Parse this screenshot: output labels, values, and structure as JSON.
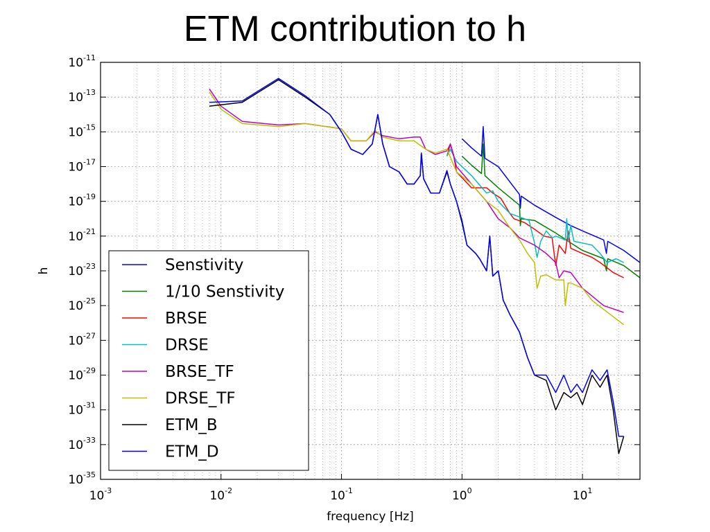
{
  "slide": {
    "title": "ETM contribution to h"
  },
  "chart_data": {
    "type": "line",
    "title": "",
    "xlabel": "frequency [Hz]",
    "ylabel": "h",
    "x_scale": "log",
    "y_scale": "log",
    "xlim": [
      0.001,
      30
    ],
    "ylim": [
      1e-35,
      1e-11
    ],
    "grid": true,
    "legend_position": "lower-left",
    "x_ticks": [
      {
        "value": 0.001,
        "base": "10",
        "exp": "-3"
      },
      {
        "value": 0.01,
        "base": "10",
        "exp": "-2"
      },
      {
        "value": 0.1,
        "base": "10",
        "exp": "-1"
      },
      {
        "value": 1,
        "base": "10",
        "exp": "0"
      },
      {
        "value": 10,
        "base": "10",
        "exp": "1"
      }
    ],
    "y_ticks": [
      {
        "value": 1e-11,
        "base": "10",
        "exp": "-11"
      },
      {
        "value": 1e-13,
        "base": "10",
        "exp": "-13"
      },
      {
        "value": 1e-15,
        "base": "10",
        "exp": "-15"
      },
      {
        "value": 1e-17,
        "base": "10",
        "exp": "-17"
      },
      {
        "value": 1e-19,
        "base": "10",
        "exp": "-19"
      },
      {
        "value": 1e-21,
        "base": "10",
        "exp": "-21"
      },
      {
        "value": 1e-23,
        "base": "10",
        "exp": "-23"
      },
      {
        "value": 1e-25,
        "base": "10",
        "exp": "-25"
      },
      {
        "value": 1e-27,
        "base": "10",
        "exp": "-27"
      },
      {
        "value": 1e-29,
        "base": "10",
        "exp": "-29"
      },
      {
        "value": 1e-31,
        "base": "10",
        "exp": "-31"
      },
      {
        "value": 1e-33,
        "base": "10",
        "exp": "-33"
      },
      {
        "value": 1e-35,
        "base": "10",
        "exp": "-35"
      }
    ],
    "series": [
      {
        "name": "Senstivity",
        "color": "#0000ff",
        "points": [
          [
            1.0,
            4e-16
          ],
          [
            1.2,
            1.2e-16
          ],
          [
            1.45,
            4e-17
          ],
          [
            1.5,
            2e-15
          ],
          [
            1.55,
            3e-17
          ],
          [
            2,
            1e-17
          ],
          [
            3,
            2.5e-19
          ],
          [
            3.05,
            4e-20
          ],
          [
            3.1,
            2e-19
          ],
          [
            4,
            6e-20
          ],
          [
            6,
            1.2e-20
          ],
          [
            8,
            4e-21
          ],
          [
            10,
            2e-21
          ],
          [
            15,
            6e-22
          ],
          [
            15.8,
            1e-22
          ],
          [
            16.2,
            5e-22
          ],
          [
            22,
            1.5e-22
          ],
          [
            30,
            3e-23
          ]
        ]
      },
      {
        "name": "1/10 Senstivity",
        "color": "#008000",
        "points": [
          [
            1.0,
            4e-17
          ],
          [
            1.2,
            1.2e-17
          ],
          [
            1.45,
            4e-18
          ],
          [
            1.5,
            2e-16
          ],
          [
            1.55,
            3e-18
          ],
          [
            2,
            6e-19
          ],
          [
            3,
            6e-20
          ],
          [
            3.05,
            4e-21
          ],
          [
            3.1,
            1e-20
          ],
          [
            4,
            8e-21
          ],
          [
            6,
            1.5e-21
          ],
          [
            8,
            4e-22
          ],
          [
            10,
            1.5e-22
          ],
          [
            15,
            5e-23
          ],
          [
            15.8,
            1e-23
          ],
          [
            16.2,
            5e-23
          ],
          [
            22,
            2e-23
          ],
          [
            30,
            4e-24
          ]
        ]
      },
      {
        "name": "BRSE",
        "color": "#ff0000",
        "points": [
          [
            0.75,
            4e-17
          ],
          [
            0.8,
            2e-16
          ],
          [
            0.85,
            5e-17
          ],
          [
            0.9,
            5e-18
          ],
          [
            1.2,
            6e-19
          ],
          [
            1.6,
            6e-19
          ],
          [
            1.8,
            3e-19
          ],
          [
            2.1,
            1.5e-19
          ],
          [
            2.5,
            2e-20
          ],
          [
            2.7,
            1e-20
          ],
          [
            3.3,
            6e-21
          ],
          [
            4,
            2.5e-21
          ],
          [
            4.8,
            1e-21
          ],
          [
            5.6,
            8e-22
          ],
          [
            6,
            2e-23
          ],
          [
            6.4,
            3e-22
          ],
          [
            7.2,
            1e-22
          ],
          [
            7.6,
            2e-21
          ],
          [
            8,
            2e-22
          ],
          [
            10,
            1e-22
          ],
          [
            12,
            6e-23
          ],
          [
            14,
            3e-23
          ],
          [
            18,
            8e-24
          ],
          [
            22,
            4e-24
          ]
        ]
      },
      {
        "name": "DRSE",
        "color": "#00bfbf",
        "points": [
          [
            0.75,
            4e-17
          ],
          [
            0.8,
            1e-16
          ],
          [
            0.9,
            2e-17
          ],
          [
            1.2,
            3e-18
          ],
          [
            1.6,
            3e-19
          ],
          [
            1.8,
            4e-19
          ],
          [
            2,
            1e-19
          ],
          [
            2.5,
            2e-20
          ],
          [
            3.3,
            1e-20
          ],
          [
            3.6,
            8e-21
          ],
          [
            4,
            4e-22
          ],
          [
            4.2,
            6e-23
          ],
          [
            4.5,
            5e-22
          ],
          [
            5,
            2e-21
          ],
          [
            5.6,
            8e-22
          ],
          [
            6,
            1e-21
          ],
          [
            7.2,
            6e-22
          ],
          [
            7.4,
            1e-20
          ],
          [
            7.6,
            5e-22
          ],
          [
            8,
            4e-21
          ],
          [
            8.5,
            5e-22
          ],
          [
            10,
            4e-22
          ],
          [
            12,
            3e-22
          ],
          [
            14,
            1e-22
          ],
          [
            16,
            3e-23
          ],
          [
            19,
            5e-23
          ],
          [
            22,
            3e-23
          ]
        ]
      },
      {
        "name": "BRSE_TF",
        "color": "#bf00bf",
        "points": [
          [
            0.008,
            3e-13
          ],
          [
            0.01,
            3e-14
          ],
          [
            0.015,
            4e-15
          ],
          [
            0.03,
            2.5e-15
          ],
          [
            0.05,
            3e-15
          ],
          [
            0.1,
            1.5e-15
          ],
          [
            0.12,
            3e-16
          ],
          [
            0.16,
            3e-16
          ],
          [
            0.19,
            1e-15
          ],
          [
            0.22,
            6e-16
          ],
          [
            0.3,
            4e-16
          ],
          [
            0.4,
            5e-16
          ],
          [
            0.45,
            5e-16
          ],
          [
            0.5,
            1e-16
          ],
          [
            0.6,
            5e-17
          ],
          [
            0.75,
            8e-17
          ],
          [
            0.8,
            2e-16
          ],
          [
            0.9,
            1e-17
          ],
          [
            1.2,
            1e-18
          ],
          [
            1.6,
            1e-19
          ],
          [
            2,
            1e-20
          ],
          [
            2.5,
            3e-21
          ],
          [
            3,
            8e-22
          ],
          [
            4,
            3e-22
          ],
          [
            5,
            1e-22
          ],
          [
            6,
            3e-23
          ],
          [
            6.4,
            4e-24
          ],
          [
            7,
            1e-23
          ],
          [
            8,
            8e-24
          ],
          [
            10,
            1e-24
          ],
          [
            15,
            1e-25
          ],
          [
            22,
            4e-26
          ]
        ]
      },
      {
        "name": "DRSE_TF",
        "color": "#bfbf00",
        "points": [
          [
            0.008,
            2e-13
          ],
          [
            0.01,
            2e-14
          ],
          [
            0.015,
            3e-15
          ],
          [
            0.03,
            2e-15
          ],
          [
            0.05,
            3e-15
          ],
          [
            0.1,
            1.5e-15
          ],
          [
            0.12,
            3e-16
          ],
          [
            0.16,
            3e-16
          ],
          [
            0.19,
            1.2e-15
          ],
          [
            0.22,
            5e-16
          ],
          [
            0.3,
            3e-16
          ],
          [
            0.4,
            3e-16
          ],
          [
            0.5,
            1e-16
          ],
          [
            0.6,
            6e-17
          ],
          [
            0.75,
            1e-16
          ],
          [
            0.9,
            5e-18
          ],
          [
            1.2,
            1e-18
          ],
          [
            1.6,
            1e-19
          ],
          [
            2,
            3e-20
          ],
          [
            2.5,
            3e-21
          ],
          [
            3,
            6e-22
          ],
          [
            3.5,
            1e-22
          ],
          [
            4,
            3e-23
          ],
          [
            4.2,
            1e-24
          ],
          [
            4.5,
            5e-24
          ],
          [
            5,
            6e-24
          ],
          [
            6,
            3e-24
          ],
          [
            7,
            3e-24
          ],
          [
            7.2,
            1e-25
          ],
          [
            7.6,
            2e-24
          ],
          [
            8,
            2e-24
          ],
          [
            10,
            1e-24
          ],
          [
            12,
            2e-25
          ],
          [
            15,
            6e-26
          ],
          [
            22,
            8e-27
          ]
        ]
      },
      {
        "name": "ETM_B",
        "color": "#000000",
        "points": [
          [
            0.008,
            3e-14
          ],
          [
            0.015,
            5e-14
          ],
          [
            0.03,
            1e-12
          ],
          [
            0.05,
            1e-13
          ],
          [
            0.08,
            1e-14
          ],
          [
            0.1,
            1e-15
          ],
          [
            0.12,
            1e-16
          ],
          [
            0.15,
            5e-17
          ],
          [
            0.18,
            2e-16
          ],
          [
            0.2,
            1e-14
          ],
          [
            0.22,
            2e-16
          ],
          [
            0.25,
            1e-17
          ],
          [
            0.3,
            5e-18
          ],
          [
            0.35,
            1e-18
          ],
          [
            0.4,
            1e-18
          ],
          [
            0.45,
            3e-18
          ],
          [
            0.46,
            6e-17
          ],
          [
            0.48,
            2e-18
          ],
          [
            0.55,
            3e-19
          ],
          [
            0.65,
            3e-19
          ],
          [
            0.75,
            5e-18
          ],
          [
            0.8,
            1e-18
          ],
          [
            0.9,
            1e-19
          ],
          [
            1.0,
            6e-21
          ],
          [
            1.1,
            3e-22
          ],
          [
            1.3,
            1e-22
          ],
          [
            1.4,
            5e-23
          ],
          [
            1.6,
            1e-23
          ],
          [
            1.7,
            1e-21
          ],
          [
            1.8,
            5e-24
          ],
          [
            2,
            1e-23
          ],
          [
            2.2,
            2e-25
          ],
          [
            2.5,
            3e-26
          ],
          [
            3,
            3e-27
          ],
          [
            3.5,
            1e-28
          ],
          [
            4,
            1e-29
          ],
          [
            5,
            5e-30
          ],
          [
            6,
            1e-31
          ],
          [
            7,
            1e-30
          ],
          [
            8,
            5e-31
          ],
          [
            9,
            1e-30
          ],
          [
            10,
            2e-31
          ],
          [
            12,
            1e-29
          ],
          [
            14,
            2e-30
          ],
          [
            16,
            1e-29
          ],
          [
            18,
            1e-31
          ],
          [
            20,
            3e-34
          ],
          [
            22,
            3e-33
          ]
        ]
      },
      {
        "name": "ETM_D",
        "color": "#0000ff",
        "points": [
          [
            0.008,
            5e-14
          ],
          [
            0.015,
            6e-14
          ],
          [
            0.03,
            1.2e-12
          ],
          [
            0.05,
            1.2e-13
          ],
          [
            0.08,
            1e-14
          ],
          [
            0.1,
            1e-15
          ],
          [
            0.12,
            1e-16
          ],
          [
            0.15,
            5e-17
          ],
          [
            0.18,
            2e-16
          ],
          [
            0.2,
            1e-14
          ],
          [
            0.22,
            2e-16
          ],
          [
            0.25,
            1e-17
          ],
          [
            0.3,
            5e-18
          ],
          [
            0.35,
            1e-18
          ],
          [
            0.4,
            1e-18
          ],
          [
            0.45,
            3e-18
          ],
          [
            0.46,
            6e-17
          ],
          [
            0.48,
            2e-18
          ],
          [
            0.55,
            3e-19
          ],
          [
            0.65,
            3e-19
          ],
          [
            0.75,
            6e-18
          ],
          [
            0.8,
            1e-18
          ],
          [
            0.9,
            1e-19
          ],
          [
            1.0,
            8e-21
          ],
          [
            1.1,
            3e-22
          ],
          [
            1.3,
            1e-22
          ],
          [
            1.4,
            5e-23
          ],
          [
            1.6,
            1e-23
          ],
          [
            1.7,
            1e-21
          ],
          [
            1.8,
            5e-24
          ],
          [
            2,
            1e-23
          ],
          [
            2.2,
            2e-25
          ],
          [
            2.5,
            3e-26
          ],
          [
            3,
            3e-27
          ],
          [
            3.5,
            1e-28
          ],
          [
            4,
            1e-29
          ],
          [
            5,
            1e-29
          ],
          [
            6,
            1e-30
          ],
          [
            7,
            1e-29
          ],
          [
            8,
            1e-30
          ],
          [
            9,
            3e-30
          ],
          [
            10,
            1e-30
          ],
          [
            12,
            2e-29
          ],
          [
            14,
            5e-30
          ],
          [
            16,
            2e-29
          ],
          [
            18,
            3e-31
          ],
          [
            20,
            3e-33
          ],
          [
            22,
            3e-33
          ]
        ]
      }
    ]
  }
}
